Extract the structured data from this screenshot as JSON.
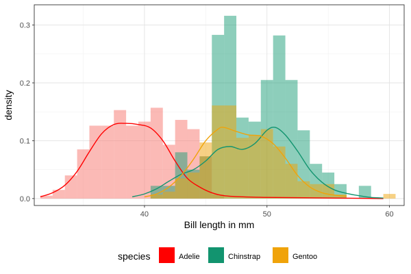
{
  "chart_data": {
    "type": "histogram-density",
    "xlabel": "Bill length in mm",
    "ylabel": "density",
    "xlim": [
      31.0,
      61.2
    ],
    "ylim": [
      -0.012,
      0.335
    ],
    "xticks": [
      40,
      50,
      60
    ],
    "yticks": [
      0.0,
      0.1,
      0.2,
      0.3
    ],
    "xticks_minor": [
      35,
      45,
      55
    ],
    "yticks_minor": [
      0.05,
      0.15,
      0.25
    ],
    "bin_width": 1.0,
    "grid": true,
    "legend_title": "species",
    "legend_position": "bottom",
    "series": [
      {
        "name": "Adelie",
        "fill_color": "#F8766D",
        "line_color": "#FF0000",
        "bins": [
          {
            "x": 32,
            "y": 0.005
          },
          {
            "x": 33,
            "y": 0.015
          },
          {
            "x": 34,
            "y": 0.04
          },
          {
            "x": 35,
            "y": 0.085
          },
          {
            "x": 36,
            "y": 0.126
          },
          {
            "x": 37,
            "y": 0.126
          },
          {
            "x": 38,
            "y": 0.153
          },
          {
            "x": 39,
            "y": 0.126
          },
          {
            "x": 40,
            "y": 0.133
          },
          {
            "x": 41,
            "y": 0.157
          },
          {
            "x": 42,
            "y": 0.093
          },
          {
            "x": 43,
            "y": 0.136
          },
          {
            "x": 44,
            "y": 0.12
          },
          {
            "x": 45,
            "y": 0.073
          },
          {
            "x": 46,
            "y": 0.007
          }
        ],
        "density": [
          {
            "x": 31.5,
            "y": 0.003
          },
          {
            "x": 32.5,
            "y": 0.01
          },
          {
            "x": 33.5,
            "y": 0.023
          },
          {
            "x": 34.5,
            "y": 0.047
          },
          {
            "x": 35.5,
            "y": 0.081
          },
          {
            "x": 36.5,
            "y": 0.112
          },
          {
            "x": 37.5,
            "y": 0.128
          },
          {
            "x": 38.5,
            "y": 0.13
          },
          {
            "x": 39.5,
            "y": 0.128
          },
          {
            "x": 40.5,
            "y": 0.122
          },
          {
            "x": 41.5,
            "y": 0.1
          },
          {
            "x": 42.5,
            "y": 0.065
          },
          {
            "x": 43.5,
            "y": 0.035
          },
          {
            "x": 44.5,
            "y": 0.02
          },
          {
            "x": 45.5,
            "y": 0.01
          },
          {
            "x": 46.5,
            "y": 0.005
          },
          {
            "x": 48,
            "y": 0.003
          },
          {
            "x": 50,
            "y": 0.002
          },
          {
            "x": 55,
            "y": 0.001
          },
          {
            "x": 59.5,
            "y": 0.0
          }
        ]
      },
      {
        "name": "Chinstrap",
        "fill_color": "#1B9E77",
        "line_color": "#12946F",
        "bins": [
          {
            "x": 41,
            "y": 0.022
          },
          {
            "x": 42,
            "y": 0.022
          },
          {
            "x": 43,
            "y": 0.08
          },
          {
            "x": 44,
            "y": 0.05
          },
          {
            "x": 45,
            "y": 0.073
          },
          {
            "x": 46,
            "y": 0.283
          },
          {
            "x": 47,
            "y": 0.316
          },
          {
            "x": 48,
            "y": 0.14
          },
          {
            "x": 49,
            "y": 0.133
          },
          {
            "x": 50,
            "y": 0.205
          },
          {
            "x": 51,
            "y": 0.282
          },
          {
            "x": 52,
            "y": 0.205
          },
          {
            "x": 53,
            "y": 0.118
          },
          {
            "x": 54,
            "y": 0.06
          },
          {
            "x": 55,
            "y": 0.045
          },
          {
            "x": 56,
            "y": 0.025
          },
          {
            "x": 57,
            "y": 0.0
          },
          {
            "x": 58,
            "y": 0.022
          }
        ],
        "density": [
          {
            "x": 39,
            "y": 0.003
          },
          {
            "x": 40,
            "y": 0.008
          },
          {
            "x": 41,
            "y": 0.017
          },
          {
            "x": 42,
            "y": 0.03
          },
          {
            "x": 43,
            "y": 0.042
          },
          {
            "x": 44,
            "y": 0.05
          },
          {
            "x": 45,
            "y": 0.065
          },
          {
            "x": 46,
            "y": 0.085
          },
          {
            "x": 47,
            "y": 0.09
          },
          {
            "x": 48,
            "y": 0.085
          },
          {
            "x": 49,
            "y": 0.095
          },
          {
            "x": 50,
            "y": 0.118
          },
          {
            "x": 50.7,
            "y": 0.123
          },
          {
            "x": 51.5,
            "y": 0.11
          },
          {
            "x": 52.5,
            "y": 0.082
          },
          {
            "x": 53.5,
            "y": 0.05
          },
          {
            "x": 54.5,
            "y": 0.028
          },
          {
            "x": 55.5,
            "y": 0.015
          },
          {
            "x": 56.5,
            "y": 0.009
          },
          {
            "x": 57.5,
            "y": 0.005
          },
          {
            "x": 58.5,
            "y": 0.002
          },
          {
            "x": 59.5,
            "y": 0.001
          }
        ]
      },
      {
        "name": "Gentoo",
        "fill_color": "#F0A30A",
        "line_color": "#F0A30A",
        "bins": [
          {
            "x": 41,
            "y": 0.007
          },
          {
            "x": 42,
            "y": 0.012
          },
          {
            "x": 43,
            "y": 0.035
          },
          {
            "x": 44,
            "y": 0.045
          },
          {
            "x": 45,
            "y": 0.097
          },
          {
            "x": 46,
            "y": 0.161
          },
          {
            "x": 47,
            "y": 0.161
          },
          {
            "x": 48,
            "y": 0.105
          },
          {
            "x": 49,
            "y": 0.11
          },
          {
            "x": 50,
            "y": 0.12
          },
          {
            "x": 51,
            "y": 0.09
          },
          {
            "x": 52,
            "y": 0.06
          },
          {
            "x": 53,
            "y": 0.03
          },
          {
            "x": 54,
            "y": 0.025
          },
          {
            "x": 55,
            "y": 0.025
          },
          {
            "x": 56,
            "y": 0.007
          },
          {
            "x": 57,
            "y": 0.0
          },
          {
            "x": 58,
            "y": 0.0
          },
          {
            "x": 59,
            "y": 0.0
          },
          {
            "x": 60,
            "y": 0.008
          }
        ],
        "density": [
          {
            "x": 40,
            "y": 0.003
          },
          {
            "x": 41,
            "y": 0.008
          },
          {
            "x": 42,
            "y": 0.02
          },
          {
            "x": 43,
            "y": 0.04
          },
          {
            "x": 44,
            "y": 0.068
          },
          {
            "x": 45,
            "y": 0.1
          },
          {
            "x": 46,
            "y": 0.12
          },
          {
            "x": 46.5,
            "y": 0.123
          },
          {
            "x": 47.5,
            "y": 0.116
          },
          {
            "x": 48.5,
            "y": 0.11
          },
          {
            "x": 49.5,
            "y": 0.108
          },
          {
            "x": 50.5,
            "y": 0.095
          },
          {
            "x": 51.5,
            "y": 0.07
          },
          {
            "x": 52.5,
            "y": 0.04
          },
          {
            "x": 53.5,
            "y": 0.02
          },
          {
            "x": 54.5,
            "y": 0.01
          },
          {
            "x": 55.5,
            "y": 0.006
          },
          {
            "x": 56.5,
            "y": 0.004
          }
        ]
      }
    ]
  }
}
